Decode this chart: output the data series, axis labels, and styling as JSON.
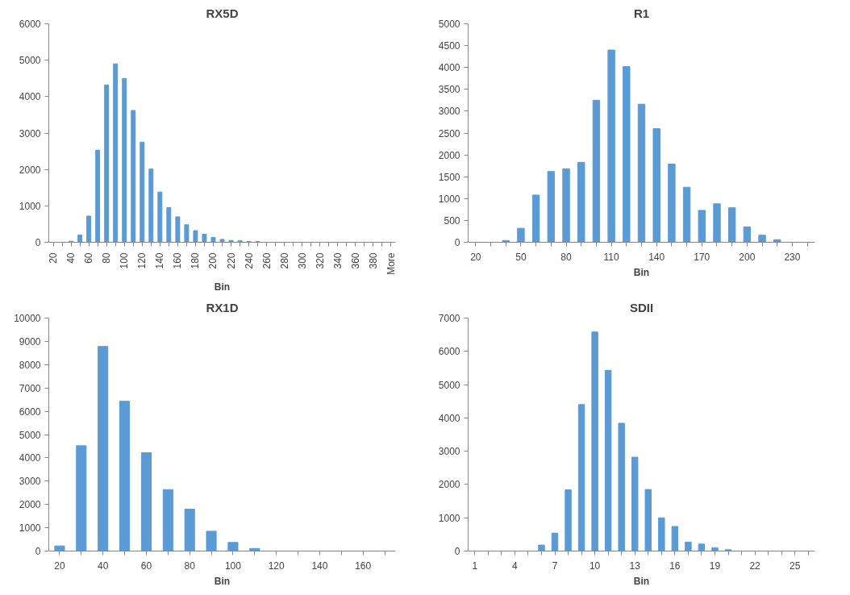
{
  "chart_data": [
    {
      "type": "bar",
      "title": "RX5D",
      "xlabel": "Bin",
      "categories": [
        "20",
        null,
        "40",
        null,
        "60",
        null,
        "80",
        null,
        "100",
        null,
        "120",
        null,
        "140",
        null,
        "160",
        null,
        "180",
        null,
        "200",
        null,
        "220",
        null,
        "240",
        null,
        "260",
        null,
        "280",
        null,
        "300",
        null,
        "320",
        null,
        "340",
        null,
        "360",
        null,
        "380",
        null,
        "More"
      ],
      "values": [
        0,
        0,
        30,
        200,
        720,
        2530,
        4320,
        4900,
        4500,
        3620,
        2750,
        2010,
        1380,
        950,
        700,
        480,
        320,
        220,
        130,
        80,
        50,
        40,
        20,
        20,
        0,
        0,
        0,
        0,
        0,
        0,
        0,
        0,
        0,
        0,
        0,
        0,
        0,
        0,
        0
      ],
      "color": "#5b9bd5",
      "ylim": [
        0,
        6000
      ],
      "yticks": [
        0,
        1000,
        2000,
        3000,
        4000,
        5000,
        6000
      ],
      "grid": false
    },
    {
      "type": "bar",
      "title": "R1",
      "xlabel": "Bin",
      "categories": [
        "20",
        null,
        null,
        "50",
        null,
        null,
        "80",
        null,
        null,
        "110",
        null,
        null,
        "140",
        null,
        null,
        "170",
        null,
        null,
        "200",
        null,
        null,
        "230",
        null
      ],
      "values": [
        0,
        0,
        40,
        320,
        1080,
        1620,
        1680,
        1830,
        3250,
        4400,
        4020,
        3160,
        2600,
        1790,
        1260,
        730,
        880,
        790,
        350,
        160,
        60,
        0,
        0
      ],
      "color": "#5b9bd5",
      "ylim": [
        0,
        5000
      ],
      "yticks": [
        0,
        500,
        1000,
        1500,
        2000,
        2500,
        3000,
        3500,
        4000,
        4500,
        5000
      ],
      "grid": false
    },
    {
      "type": "bar",
      "title": "RX1D",
      "xlabel": "Bin",
      "categories": [
        "20",
        null,
        "40",
        null,
        "60",
        null,
        "80",
        null,
        "100",
        null,
        "120",
        null,
        "140",
        null,
        "160",
        null
      ],
      "values": [
        220,
        4520,
        8780,
        6430,
        4220,
        2640,
        1800,
        850,
        370,
        110,
        0,
        0,
        0,
        0,
        0,
        0
      ],
      "color": "#5b9bd5",
      "ylim": [
        0,
        10000
      ],
      "yticks": [
        0,
        1000,
        2000,
        3000,
        4000,
        5000,
        6000,
        7000,
        8000,
        9000,
        10000
      ],
      "grid": false
    },
    {
      "type": "bar",
      "title": "SDII",
      "xlabel": "Bin",
      "categories": [
        "1",
        null,
        null,
        "4",
        null,
        null,
        "7",
        null,
        null,
        "10",
        null,
        null,
        "13",
        null,
        null,
        "16",
        null,
        null,
        "19",
        null,
        null,
        "22",
        null,
        null,
        "25",
        null
      ],
      "values": [
        0,
        0,
        0,
        0,
        0,
        180,
        540,
        1840,
        4400,
        6580,
        5430,
        3840,
        2820,
        1850,
        1000,
        740,
        270,
        210,
        100,
        40,
        0,
        0,
        0,
        0,
        0,
        0
      ],
      "color": "#5b9bd5",
      "ylim": [
        0,
        7000
      ],
      "yticks": [
        0,
        1000,
        2000,
        3000,
        4000,
        5000,
        6000,
        7000
      ],
      "grid": false
    }
  ]
}
